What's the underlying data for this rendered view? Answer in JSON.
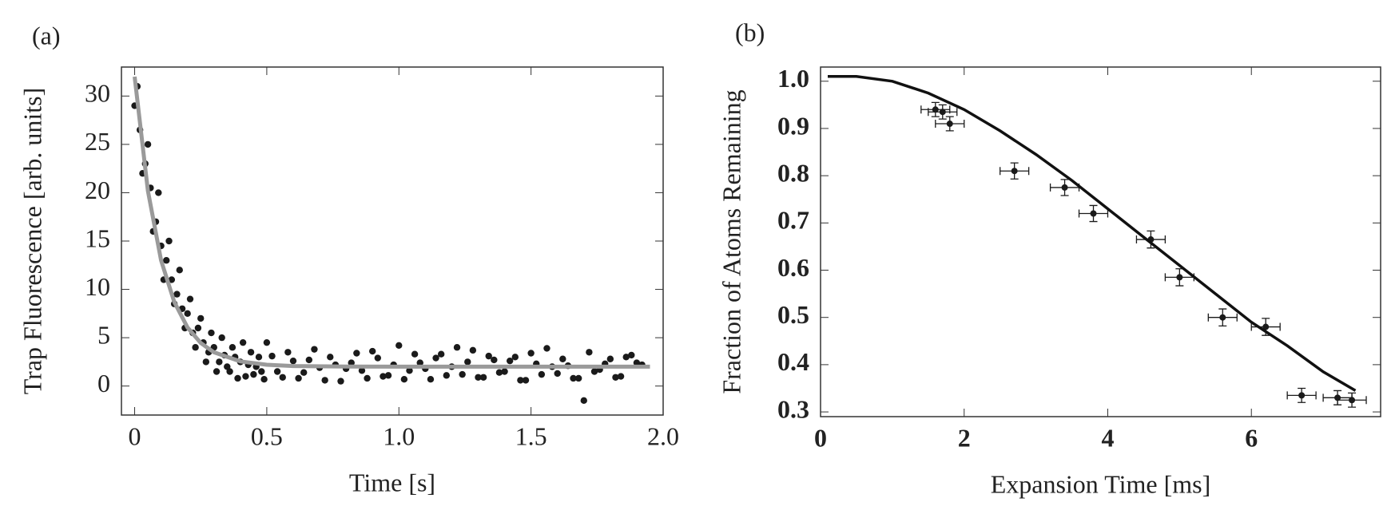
{
  "chart_data": [
    {
      "type": "scatter",
      "label": "(a)",
      "x_label": "Time [s]",
      "y_label": "Trap Fluorescence [arb. units]",
      "xlim": [
        -0.05,
        2.0
      ],
      "ylim": [
        -3,
        33
      ],
      "xticks": [
        0,
        0.5,
        {
          "value": 1,
          "label": "1.0"
        },
        1.5,
        {
          "value": 2,
          "label": "2.0"
        }
      ],
      "yticks": [
        0,
        5,
        10,
        15,
        20,
        25,
        30
      ],
      "series": [
        {
          "kind": "scatter",
          "color": "#1a1a1a",
          "x": [
            0,
            0.02,
            0.04,
            0.06,
            0.08,
            0.1,
            0.12,
            0.14,
            0.16,
            0.18,
            0.2,
            0.22,
            0.24,
            0.26,
            0.28,
            0.3,
            0.32,
            0.34,
            0.36,
            0.38,
            0.4,
            0.42,
            0.44,
            0.46,
            0.48,
            0.5,
            0.01,
            0.03,
            0.05,
            0.07,
            0.09,
            0.11,
            0.13,
            0.15,
            0.17,
            0.19,
            0.21,
            0.23,
            0.25,
            0.27,
            0.29,
            0.31,
            0.33,
            0.35,
            0.37,
            0.39,
            0.41,
            0.43,
            0.45,
            0.47,
            0.49,
            0.52,
            0.56,
            0.6,
            0.64,
            0.68,
            0.72,
            0.76,
            0.8,
            0.84,
            0.88,
            0.92,
            0.96,
            1,
            1.04,
            1.08,
            1.12,
            1.16,
            1.2,
            1.24,
            1.28,
            1.32,
            1.36,
            1.4,
            1.44,
            1.48,
            1.52,
            1.56,
            1.6,
            1.64,
            1.68,
            1.72,
            1.76,
            1.8,
            1.84,
            1.88,
            1.92,
            0.54,
            0.58,
            0.62,
            0.66,
            0.7,
            0.74,
            0.78,
            0.82,
            0.86,
            0.9,
            0.94,
            0.98,
            1.02,
            1.06,
            1.1,
            1.14,
            1.18,
            1.22,
            1.26,
            1.3,
            1.34,
            1.38,
            1.42,
            1.46,
            1.5,
            1.54,
            1.58,
            1.62,
            1.66,
            1.7,
            1.74,
            1.78,
            1.82,
            1.86,
            1.9
          ],
          "values": [
            29,
            26.5,
            23,
            20.5,
            17,
            14.5,
            13,
            11,
            9.5,
            8,
            7.5,
            5.5,
            6,
            4.5,
            3.5,
            4,
            2.5,
            3.2,
            1.5,
            3,
            2.5,
            1,
            3.5,
            2,
            1.5,
            4.5,
            31,
            22,
            25,
            16,
            20,
            11,
            15,
            8.5,
            12,
            6,
            9,
            4,
            7,
            2.5,
            5.5,
            1.5,
            5,
            2,
            4,
            0.8,
            4.5,
            2.2,
            1.2,
            3,
            0.7,
            3.1,
            0.9,
            2.6,
            1.4,
            3.8,
            0.6,
            2.2,
            1.8,
            3.4,
            0.8,
            2.9,
            1.1,
            4.2,
            1.6,
            2.4,
            0.7,
            3.3,
            2,
            1.2,
            3.7,
            0.9,
            2.7,
            1.5,
            3,
            0.6,
            2.3,
            3.9,
            1.3,
            2.1,
            0.8,
            3.5,
            1.7,
            2.8,
            1,
            3.2,
            2.2,
            1.5,
            3.5,
            0.8,
            2.7,
            1.9,
            3,
            0.5,
            2.4,
            1.6,
            3.6,
            1,
            2.2,
            0.7,
            3.3,
            1.8,
            2.9,
            1.1,
            4,
            2.5,
            0.9,
            3.1,
            1.4,
            2.6,
            0.6,
            3.4,
            1.2,
            2,
            2.8,
            0.8,
            -1.5,
            1.5,
            2.3,
            0.9,
            3,
            2.4
          ]
        },
        {
          "kind": "line",
          "color": "#9a9a9a",
          "x": [
            0,
            0.05,
            0.1,
            0.15,
            0.2,
            0.25,
            0.3,
            0.4,
            0.5,
            0.6,
            0.8,
            1,
            1.5,
            1.95
          ],
          "values": [
            32,
            20.2,
            13,
            8.7,
            6.06,
            4.46,
            3.49,
            2.55,
            2.2,
            2.07,
            2.01,
            2,
            2,
            2
          ]
        }
      ]
    },
    {
      "type": "scatter",
      "label": "(b)",
      "x_label": "Expansion Time [ms]",
      "y_label": "Fraction of Atoms Remaining",
      "xlim": [
        0,
        7.8
      ],
      "ylim": [
        0.29,
        1.03
      ],
      "xticks": [
        0,
        2,
        4,
        6
      ],
      "yticks": [
        0.3,
        0.4,
        0.5,
        0.6,
        0.7,
        0.8,
        0.9,
        {
          "value": 1,
          "label": "1.0"
        }
      ],
      "series": [
        {
          "kind": "errorbar",
          "color": "#1a1a1a",
          "x": [
            1.6,
            1.7,
            1.8,
            2.7,
            3.4,
            3.8,
            4.6,
            5,
            5.6,
            6.2,
            6.7,
            7.2,
            7.4
          ],
          "values": [
            0.94,
            0.935,
            0.91,
            0.81,
            0.775,
            0.72,
            0.665,
            0.585,
            0.5,
            0.48,
            0.335,
            0.33,
            0.325
          ],
          "x_errors": [
            0.2,
            0.2,
            0.2,
            0.2,
            0.2,
            0.2,
            0.2,
            0.2,
            0.2,
            0.2,
            0.2,
            0.2,
            0.2
          ],
          "y_errors": [
            0.015,
            0.015,
            0.015,
            0.017,
            0.017,
            0.017,
            0.018,
            0.018,
            0.018,
            0.018,
            0.015,
            0.015,
            0.015
          ]
        },
        {
          "kind": "line",
          "color": "#111111",
          "x": [
            0.1,
            0.5,
            1,
            1.5,
            2,
            2.5,
            3,
            3.5,
            4,
            4.5,
            5,
            5.5,
            6,
            6.5,
            7,
            7.45
          ],
          "values": [
            1.01,
            1.01,
            1,
            0.975,
            0.94,
            0.895,
            0.845,
            0.79,
            0.73,
            0.67,
            0.61,
            0.55,
            0.49,
            0.44,
            0.385,
            0.345
          ]
        }
      ]
    }
  ]
}
